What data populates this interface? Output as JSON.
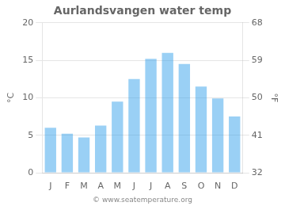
{
  "chart_data": {
    "type": "bar",
    "title": "Aurlandsvangen water temp",
    "categories": [
      "J",
      "F",
      "M",
      "A",
      "M",
      "J",
      "J",
      "A",
      "S",
      "O",
      "N",
      "D"
    ],
    "values": [
      6.0,
      5.2,
      4.7,
      6.3,
      9.5,
      12.5,
      15.2,
      16.0,
      14.5,
      11.5,
      9.9,
      7.5
    ],
    "ylabel": "°C",
    "ylim": [
      0,
      20
    ],
    "yticks": [
      0,
      5,
      10,
      15,
      20
    ],
    "y2label": "°F",
    "y2lim": [
      32,
      68
    ],
    "y2ticks": [
      32,
      41,
      50,
      59,
      68
    ],
    "annotations": [
      "© www.seatemperature.org"
    ],
    "grid": true
  }
}
